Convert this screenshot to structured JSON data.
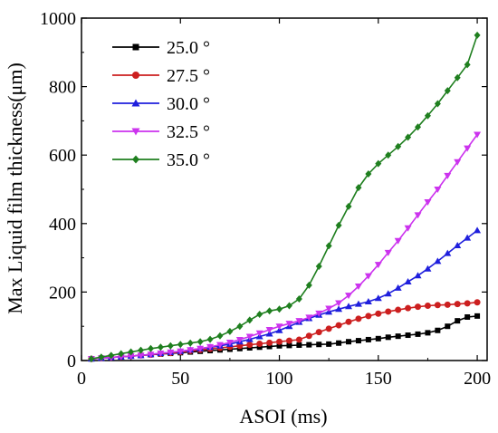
{
  "chart_data": {
    "type": "line",
    "xlabel": "ASOI (ms)",
    "ylabel": "Max Liquid film thickness(μm)",
    "xlim": [
      0,
      205
    ],
    "ylim": [
      0,
      1000
    ],
    "x_ticks": [
      0,
      50,
      100,
      150,
      200
    ],
    "y_ticks": [
      0,
      200,
      400,
      600,
      800,
      1000
    ],
    "grid": false,
    "legend_position": "top-left",
    "x": [
      5,
      10,
      15,
      20,
      25,
      30,
      35,
      40,
      45,
      50,
      55,
      60,
      65,
      70,
      75,
      80,
      85,
      90,
      95,
      100,
      105,
      110,
      115,
      120,
      125,
      130,
      135,
      140,
      145,
      150,
      155,
      160,
      165,
      170,
      175,
      180,
      185,
      190,
      195,
      200
    ],
    "series": [
      {
        "name": "25.0 °",
        "color": "#000000",
        "marker": "square",
        "values": [
          5,
          7,
          9,
          11,
          13,
          15,
          17,
          19,
          21,
          23,
          25,
          27,
          29,
          31,
          33,
          35,
          37,
          39,
          41,
          43,
          44,
          45,
          46,
          47,
          48,
          51,
          55,
          58,
          61,
          64,
          68,
          71,
          74,
          77,
          81,
          88,
          100,
          116,
          127,
          130
        ]
      },
      {
        "name": "27.5 °",
        "color": "#cc1f1f",
        "marker": "circle",
        "values": [
          5,
          7,
          9,
          11,
          13,
          15,
          17,
          20,
          22,
          25,
          28,
          31,
          34,
          37,
          40,
          43,
          46,
          49,
          52,
          55,
          58,
          61,
          72,
          83,
          93,
          103,
          113,
          122,
          130,
          137,
          143,
          148,
          153,
          157,
          160,
          162,
          163,
          165,
          167,
          170
        ]
      },
      {
        "name": "30.0 °",
        "color": "#1f1fdd",
        "marker": "triangle-up",
        "values": [
          5,
          7,
          9,
          11,
          13,
          15,
          18,
          21,
          24,
          27,
          31,
          35,
          39,
          43,
          48,
          55,
          62,
          70,
          78,
          88,
          100,
          112,
          123,
          133,
          142,
          150,
          158,
          165,
          172,
          182,
          195,
          212,
          230,
          248,
          268,
          290,
          313,
          336,
          358,
          380
        ]
      },
      {
        "name": "32.5 °",
        "color": "#cc33ee",
        "marker": "triangle-down",
        "values": [
          5,
          7,
          9,
          11,
          13,
          15,
          18,
          21,
          24,
          27,
          31,
          35,
          40,
          46,
          53,
          61,
          70,
          80,
          90,
          100,
          108,
          116,
          126,
          138,
          152,
          168,
          190,
          217,
          247,
          280,
          315,
          350,
          387,
          425,
          463,
          500,
          540,
          580,
          620,
          660
        ]
      },
      {
        "name": "35.0 °",
        "color": "#1f7f1f",
        "marker": "diamond",
        "values": [
          5,
          10,
          15,
          20,
          25,
          30,
          35,
          39,
          43,
          47,
          51,
          55,
          62,
          72,
          85,
          100,
          118,
          135,
          145,
          150,
          160,
          180,
          220,
          275,
          335,
          395,
          450,
          505,
          545,
          575,
          600,
          625,
          652,
          682,
          715,
          750,
          788,
          826,
          864,
          950
        ]
      }
    ]
  }
}
